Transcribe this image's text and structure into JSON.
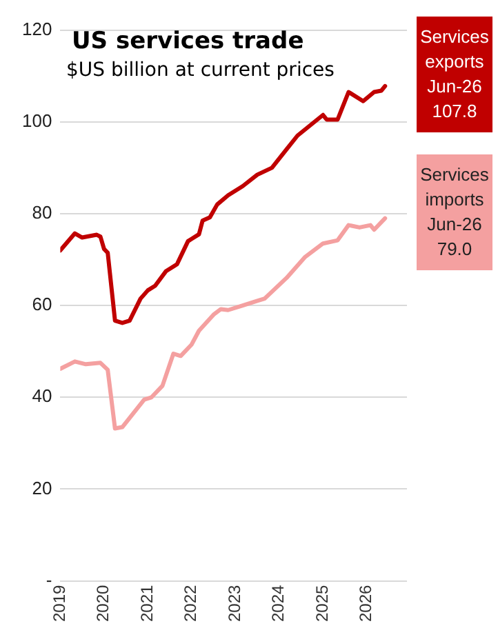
{
  "chart_data": {
    "type": "line",
    "title": "US services trade",
    "subtitle": "$US billion at current prices",
    "xlim": [
      "2019-01",
      "2026-12"
    ],
    "xticks": [
      "2019",
      "2020",
      "2021",
      "2022",
      "2023",
      "2024",
      "2025",
      "2026"
    ],
    "ylim": [
      0,
      120
    ],
    "yticks": [
      {
        "value": 0,
        "label": "-"
      },
      20,
      40,
      60,
      80,
      100,
      120
    ],
    "grid": "y",
    "legend": false,
    "marker": "none",
    "line_style": "solid",
    "series": [
      {
        "color": "#c00000",
        "x": [
          "2019-01",
          "2019-05",
          "2019-07",
          "2019-11",
          "2019-12",
          "2020-01",
          "2020-02",
          "2020-04",
          "2020-06",
          "2020-08",
          "2020-11",
          "2021-01",
          "2021-03",
          "2021-06",
          "2021-09",
          "2021-12",
          "2022-01",
          "2022-03",
          "2022-04",
          "2022-06",
          "2022-08",
          "2022-11",
          "2023-03",
          "2023-07",
          "2023-11",
          "2024-03",
          "2024-06",
          "2025-01",
          "2025-02",
          "2025-05",
          "2025-08",
          "2025-12",
          "2026-03",
          "2026-05",
          "2026-06"
        ],
        "values": [
          72.0,
          75.7,
          74.8,
          75.4,
          75.0,
          72.3,
          71.5,
          56.7,
          56.2,
          56.7,
          61.5,
          63.3,
          64.3,
          67.5,
          69.0,
          74.0,
          74.5,
          75.5,
          78.5,
          79.2,
          82.0,
          84.0,
          86.0,
          88.5,
          90.0,
          94.0,
          97.0,
          101.5,
          100.5,
          100.5,
          106.5,
          104.5,
          106.5,
          106.8,
          107.8
        ]
      },
      {
        "color": "#f4a0a0",
        "x": [
          "2019-01",
          "2019-05",
          "2019-08",
          "2019-12",
          "2020-02",
          "2020-04",
          "2020-06",
          "2020-12",
          "2021-02",
          "2021-05",
          "2021-08",
          "2021-10",
          "2022-01",
          "2022-03",
          "2022-07",
          "2022-09",
          "2022-11",
          "2023-03",
          "2023-07",
          "2023-09",
          "2024-03",
          "2024-08",
          "2025-01",
          "2025-05",
          "2025-08",
          "2025-11",
          "2026-02",
          "2026-03",
          "2026-06"
        ],
        "values": [
          46.2,
          47.8,
          47.2,
          47.5,
          46.0,
          33.2,
          33.5,
          39.5,
          40.0,
          42.5,
          49.5,
          49.0,
          51.5,
          54.5,
          58.0,
          59.2,
          59.0,
          60.0,
          61.0,
          61.5,
          66.0,
          70.5,
          73.5,
          74.2,
          77.5,
          77.0,
          77.5,
          76.5,
          79.0
        ]
      }
    ],
    "annotations": [
      "Services exports Jun-26 107.8",
      "Services imports Jun-26 79.0"
    ]
  }
}
